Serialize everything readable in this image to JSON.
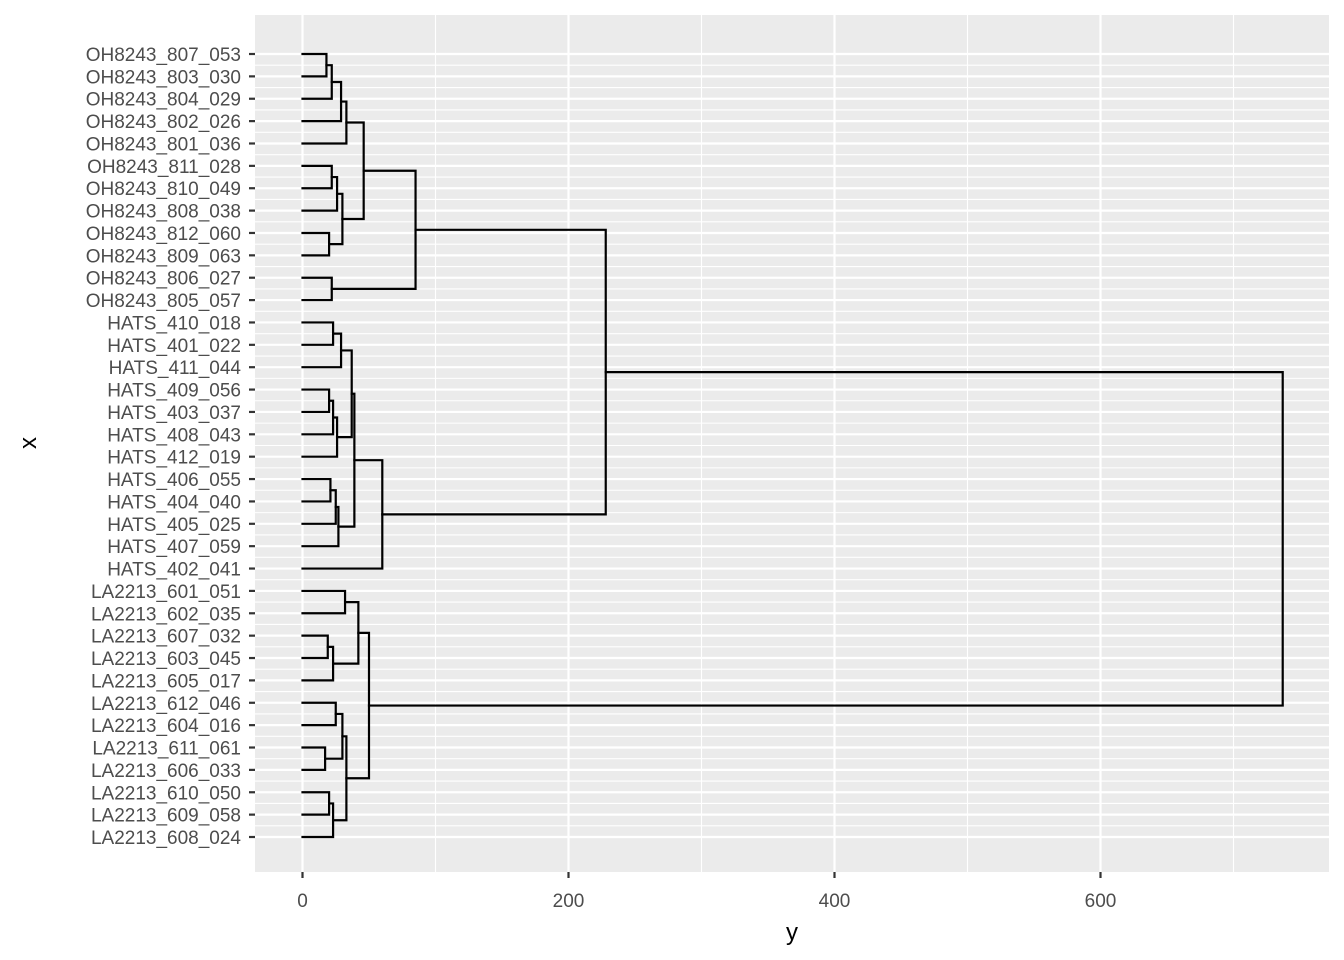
{
  "chart_data": {
    "type": "dendrogram",
    "orientation": "horizontal",
    "xlabel": "y",
    "ylabel": "x",
    "x_ticks": [
      0,
      200,
      400,
      600
    ],
    "x_tick_labels": [
      "0",
      "200",
      "400",
      "600"
    ],
    "xlim": [
      -35,
      775
    ],
    "grid": true,
    "leaves": [
      "OH8243_807_053",
      "OH8243_803_030",
      "OH8243_804_029",
      "OH8243_802_026",
      "OH8243_801_036",
      "OH8243_811_028",
      "OH8243_810_049",
      "OH8243_808_038",
      "OH8243_812_060",
      "OH8243_809_063",
      "OH8243_806_027",
      "OH8243_805_057",
      "HATS_410_018",
      "HATS_401_022",
      "HATS_411_044",
      "HATS_409_056",
      "HATS_403_037",
      "HATS_408_043",
      "HATS_412_019",
      "HATS_406_055",
      "HATS_404_040",
      "HATS_405_025",
      "HATS_407_059",
      "HATS_402_041",
      "LA2213_601_051",
      "LA2213_602_035",
      "LA2213_607_032",
      "LA2213_603_045",
      "LA2213_605_017",
      "LA2213_612_046",
      "LA2213_604_016",
      "LA2213_611_061",
      "LA2213_606_033",
      "LA2213_610_050",
      "LA2213_609_058",
      "LA2213_608_024"
    ],
    "merges": [
      {
        "id": "o1",
        "children": [
          0,
          1
        ],
        "height": 18
      },
      {
        "id": "o2",
        "children": [
          "o1",
          2
        ],
        "height": 22
      },
      {
        "id": "o3",
        "children": [
          "o2",
          3
        ],
        "height": 29
      },
      {
        "id": "o4",
        "children": [
          "o3",
          4
        ],
        "height": 33
      },
      {
        "id": "o5",
        "children": [
          5,
          6
        ],
        "height": 22
      },
      {
        "id": "o6",
        "children": [
          "o5",
          7
        ],
        "height": 26
      },
      {
        "id": "o7",
        "children": [
          8,
          9
        ],
        "height": 20
      },
      {
        "id": "o8",
        "children": [
          "o6",
          "o7"
        ],
        "height": 30
      },
      {
        "id": "o9",
        "children": [
          "o4",
          "o8"
        ],
        "height": 46
      },
      {
        "id": "o10",
        "children": [
          10,
          11
        ],
        "height": 22
      },
      {
        "id": "o11",
        "children": [
          "o9",
          "o10"
        ],
        "height": 85
      },
      {
        "id": "h1",
        "children": [
          12,
          13
        ],
        "height": 23
      },
      {
        "id": "h2",
        "children": [
          "h1",
          14
        ],
        "height": 29
      },
      {
        "id": "h3",
        "children": [
          15,
          16
        ],
        "height": 20
      },
      {
        "id": "h4",
        "children": [
          "h3",
          17
        ],
        "height": 23
      },
      {
        "id": "h5",
        "children": [
          "h4",
          18
        ],
        "height": 26
      },
      {
        "id": "h6",
        "children": [
          "h2",
          "h5"
        ],
        "height": 37
      },
      {
        "id": "h7",
        "children": [
          19,
          20
        ],
        "height": 21
      },
      {
        "id": "h8",
        "children": [
          "h7",
          21
        ],
        "height": 25
      },
      {
        "id": "h9",
        "children": [
          "h8",
          22
        ],
        "height": 27
      },
      {
        "id": "h10",
        "children": [
          "h6",
          "h9"
        ],
        "height": 39
      },
      {
        "id": "h11",
        "children": [
          "h10",
          23
        ],
        "height": 60
      },
      {
        "id": "oh",
        "children": [
          "o11",
          "h11"
        ],
        "height": 228
      },
      {
        "id": "l1",
        "children": [
          24,
          25
        ],
        "height": 32
      },
      {
        "id": "l2",
        "children": [
          26,
          27
        ],
        "height": 19
      },
      {
        "id": "l3",
        "children": [
          "l2",
          28
        ],
        "height": 23
      },
      {
        "id": "l4",
        "children": [
          "l1",
          "l3"
        ],
        "height": 42
      },
      {
        "id": "l5",
        "children": [
          29,
          30
        ],
        "height": 25
      },
      {
        "id": "l6",
        "children": [
          31,
          32
        ],
        "height": 17
      },
      {
        "id": "l7",
        "children": [
          "l5",
          "l6"
        ],
        "height": 30
      },
      {
        "id": "l8",
        "children": [
          33,
          34
        ],
        "height": 20
      },
      {
        "id": "l9",
        "children": [
          "l8",
          35
        ],
        "height": 23
      },
      {
        "id": "l10",
        "children": [
          "l7",
          "l9"
        ],
        "height": 33
      },
      {
        "id": "l11",
        "children": [
          "l4",
          "l10"
        ],
        "height": 50
      },
      {
        "id": "root",
        "children": [
          "oh",
          "l11"
        ],
        "height": 737
      }
    ]
  }
}
